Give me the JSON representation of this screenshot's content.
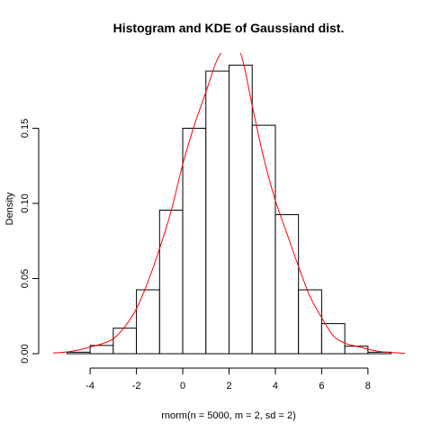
{
  "chart_data": {
    "type": "bar",
    "title": "Histogram and KDE of Gaussiand dist.",
    "xlabel": "rnorm(n = 5000, m = 2, sd = 2)",
    "ylabel": "Density",
    "xlim": [
      -5.6,
      9.6
    ],
    "ylim": [
      0,
      0.2
    ],
    "x_ticks": [
      -4,
      -2,
      0,
      2,
      4,
      6,
      8
    ],
    "y_ticks": [
      0.0,
      0.05,
      0.1,
      0.15
    ],
    "y_tick_labels": [
      "0.00",
      "0.05",
      "0.10",
      "0.15"
    ],
    "bins": [
      {
        "x0": -5,
        "x1": -4,
        "density": 0.001
      },
      {
        "x0": -4,
        "x1": -3,
        "density": 0.0055
      },
      {
        "x0": -3,
        "x1": -2,
        "density": 0.017
      },
      {
        "x0": -2,
        "x1": -1,
        "density": 0.0425
      },
      {
        "x0": -1,
        "x1": 0,
        "density": 0.0955
      },
      {
        "x0": 0,
        "x1": 1,
        "density": 0.15
      },
      {
        "x0": 1,
        "x1": 2,
        "density": 0.188
      },
      {
        "x0": 2,
        "x1": 3,
        "density": 0.192
      },
      {
        "x0": 3,
        "x1": 4,
        "density": 0.152
      },
      {
        "x0": 4,
        "x1": 5,
        "density": 0.0925
      },
      {
        "x0": 5,
        "x1": 6,
        "density": 0.0425
      },
      {
        "x0": 6,
        "x1": 7,
        "density": 0.02
      },
      {
        "x0": 7,
        "x1": 8,
        "density": 0.005
      },
      {
        "x0": 8,
        "x1": 9,
        "density": 0.001
      }
    ],
    "kde": {
      "color": "#ff0000",
      "x": [
        -5.6,
        -5.0,
        -4.5,
        -4.0,
        -3.5,
        -3.0,
        -2.5,
        -2.0,
        -1.5,
        -1.0,
        -0.5,
        0.0,
        0.5,
        1.0,
        1.5,
        2.0,
        2.5,
        3.0,
        3.5,
        4.0,
        4.5,
        5.0,
        5.5,
        6.0,
        6.5,
        7.0,
        7.5,
        8.0,
        8.5,
        9.0,
        9.6
      ],
      "y": [
        0.0005,
        0.0012,
        0.0025,
        0.0045,
        0.0065,
        0.01,
        0.018,
        0.03,
        0.048,
        0.07,
        0.095,
        0.126,
        0.152,
        0.174,
        0.196,
        0.205,
        0.2,
        0.165,
        0.13,
        0.102,
        0.08,
        0.058,
        0.038,
        0.024,
        0.012,
        0.007,
        0.005,
        0.003,
        0.0015,
        0.0008,
        0.0002
      ]
    },
    "grid": false,
    "legend": "none"
  }
}
